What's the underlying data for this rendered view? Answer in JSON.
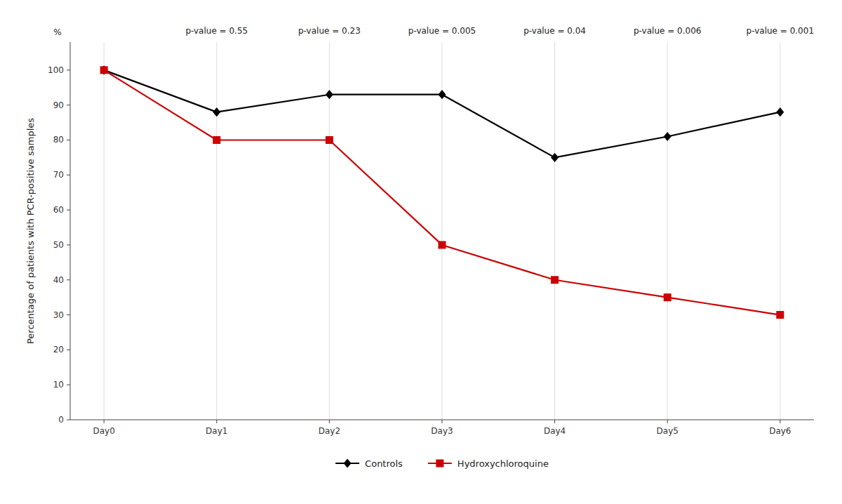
{
  "chart_data": {
    "type": "line",
    "categories": [
      "Day0",
      "Day1",
      "Day2",
      "Day3",
      "Day4",
      "Day5",
      "Day6"
    ],
    "series": [
      {
        "name": "Controls",
        "color": "#000000",
        "marker": "diamond",
        "values": [
          100,
          88,
          93,
          93,
          75,
          81,
          88
        ]
      },
      {
        "name": "Hydroxychloroquine",
        "color": "#cc0000",
        "marker": "square",
        "values": [
          100,
          80,
          80,
          50,
          40,
          35,
          30
        ]
      }
    ],
    "ylabel": "Percentage of patients with PCR-positive samples",
    "ylim": [
      0,
      108
    ],
    "yticks": [
      0,
      10,
      20,
      30,
      40,
      50,
      60,
      70,
      80,
      90,
      100
    ],
    "annotations": [
      {
        "text": "%"
      },
      {
        "text": "p-value = 0.55",
        "x": "Day1"
      },
      {
        "text": "p-value = 0.23",
        "x": "Day2"
      },
      {
        "text": "p-value = 0.005",
        "x": "Day3"
      },
      {
        "text": "p-value = 0.04",
        "x": "Day4"
      },
      {
        "text": "p-value = 0.006",
        "x": "Day5"
      },
      {
        "text": "p-value = 0.001",
        "x": "Day6"
      }
    ],
    "grid": "x",
    "legend": "bottom"
  }
}
